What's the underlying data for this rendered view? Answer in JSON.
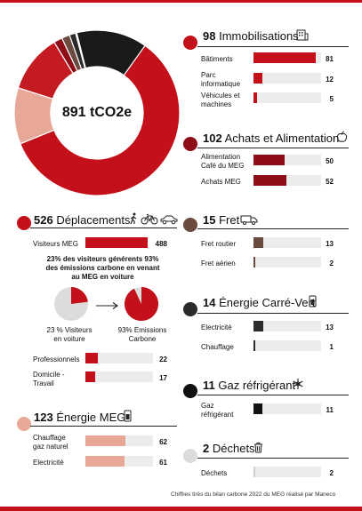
{
  "total_label": "891 tCO2e",
  "donut": {
    "values": [
      526,
      98,
      102,
      15,
      14,
      11,
      2,
      123
    ],
    "colors": [
      "#c4101a",
      "#e8a898",
      "#c41a22",
      "#8e0e18",
      "#6b4a40",
      "#2b2b2b",
      "#dcdcdc",
      "#1a1a1a"
    ]
  },
  "sections": {
    "immo": {
      "title_num": "98",
      "title_text": "Immobilisations",
      "color": "#c4101a",
      "rows": [
        {
          "label": "Bâtiments",
          "value": "81"
        },
        {
          "label": "Parc\ninformatique",
          "value": "12"
        },
        {
          "label": "Véhicules et\nmachines",
          "value": "5"
        }
      ]
    },
    "achats": {
      "title_num": "102",
      "title_text": "Achats et Alimentation",
      "color": "#8e0e18",
      "rows": [
        {
          "label": "Alimentation\nCafé du MEG",
          "value": "50"
        },
        {
          "label": "Achats MEG",
          "value": "52"
        }
      ]
    },
    "depl": {
      "title_num": "526",
      "title_text": "Déplacements",
      "color": "#c4101a",
      "rows": [
        {
          "label": "Visiteurs MEG",
          "value": "488"
        },
        {
          "label": "Professionnels",
          "value": "22"
        },
        {
          "label": "Domicile -\nTravail",
          "value": "17"
        }
      ],
      "note": "23% des visiteurs générents 93%\ndes émissions carbone en venant\nau MEG en voiture",
      "pie_left_caption": "23 % Visiteurs\nen voiture",
      "pie_right_caption": "93% Emissions\nCarbone",
      "pie_left_pct": 23,
      "pie_right_pct": 93
    },
    "fret": {
      "title_num": "15",
      "title_text": "Fret",
      "color": "#6b4a40",
      "rows": [
        {
          "label": "Fret routier",
          "value": "13"
        },
        {
          "label": "Fret aérien",
          "value": "2"
        }
      ]
    },
    "energie_cv": {
      "title_num": "14",
      "title_text": "Énergie Carré-Vert",
      "color": "#2b2b2b",
      "rows": [
        {
          "label": "Electricité",
          "value": "13"
        },
        {
          "label": "Chauffage",
          "value": "1"
        }
      ]
    },
    "gaz": {
      "title_num": "11",
      "title_text": "Gaz réfrigérant",
      "color": "#111111",
      "rows": [
        {
          "label": "Gaz\nréfrigérant",
          "value": "11"
        }
      ]
    },
    "energie_meg": {
      "title_num": "123",
      "title_text": "Énergie MEG",
      "color": "#e8a898",
      "rows": [
        {
          "label": "Chauffage\ngaz naturel",
          "value": "62"
        },
        {
          "label": "Electricité",
          "value": "61"
        }
      ]
    },
    "dechets": {
      "title_num": "2",
      "title_text": "Déchets",
      "color": "#dcdcdc",
      "rows": [
        {
          "label": "Déchets",
          "value": "2"
        }
      ]
    }
  },
  "footer": "Chiffres tirés du bilan carbone 2022 du MEG réalisé par Maneco",
  "chart_data": {
    "type": "bar",
    "title": "891 tCO2e",
    "categories": [
      "Déplacements",
      "Énergie MEG",
      "Achats et Alimentation",
      "Immobilisations",
      "Fret",
      "Énergie Carré-Vert",
      "Gaz réfrigérant",
      "Déchets"
    ],
    "values": [
      526,
      123,
      102,
      98,
      15,
      14,
      11,
      2
    ],
    "sub_series": [
      {
        "name": "Immobilisations",
        "categories": [
          "Bâtiments",
          "Parc informatique",
          "Véhicules et machines"
        ],
        "values": [
          81,
          12,
          5
        ]
      },
      {
        "name": "Achats et Alimentation",
        "categories": [
          "Alimentation Café du MEG",
          "Achats MEG"
        ],
        "values": [
          50,
          52
        ]
      },
      {
        "name": "Déplacements",
        "categories": [
          "Visiteurs MEG",
          "Professionnels",
          "Domicile - Travail"
        ],
        "values": [
          488,
          22,
          17
        ]
      },
      {
        "name": "Fret",
        "categories": [
          "Fret routier",
          "Fret aérien"
        ],
        "values": [
          13,
          2
        ]
      },
      {
        "name": "Énergie Carré-Vert",
        "categories": [
          "Electricité",
          "Chauffage"
        ],
        "values": [
          13,
          1
        ]
      },
      {
        "name": "Gaz réfrigérant",
        "categories": [
          "Gaz réfrigérant"
        ],
        "values": [
          11
        ]
      },
      {
        "name": "Énergie MEG",
        "categories": [
          "Chauffage gaz naturel",
          "Electricité"
        ],
        "values": [
          62,
          61
        ]
      },
      {
        "name": "Déchets",
        "categories": [
          "Déchets"
        ],
        "values": [
          2
        ]
      }
    ]
  }
}
